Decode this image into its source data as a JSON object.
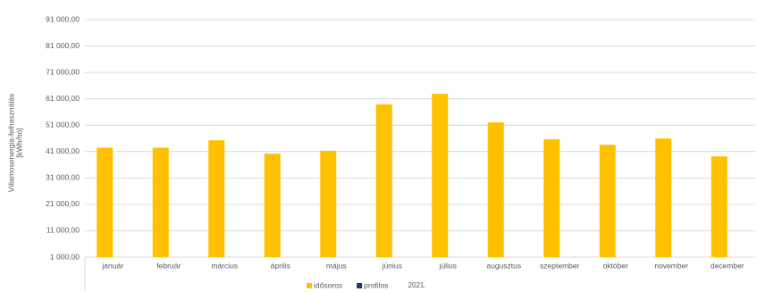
{
  "chart_data": {
    "type": "bar",
    "ylabel": [
      "Villamosenergia-felhasználás",
      "[kWh/hó]"
    ],
    "xlabel": "2021.",
    "categories": [
      "január",
      "február",
      "március",
      "április",
      "május",
      "június",
      "július",
      "augusztus",
      "szeptember",
      "október",
      "november",
      "december"
    ],
    "series": [
      {
        "name": "idősoros",
        "color": "#ffc000",
        "values": [
          42500,
          42500,
          45300,
          40200,
          41300,
          58900,
          62900,
          52100,
          45700,
          43600,
          46000,
          39200
        ]
      },
      {
        "name": "profilos",
        "color": "#203864",
        "values": [
          null,
          null,
          null,
          null,
          null,
          null,
          null,
          null,
          null,
          null,
          null,
          null
        ]
      }
    ],
    "ylim": [
      1000,
      91000
    ],
    "yticks": [
      {
        "value": 1000,
        "label": "1 000,00"
      },
      {
        "value": 11000,
        "label": "11 000,00"
      },
      {
        "value": 21000,
        "label": "21 000,00"
      },
      {
        "value": 31000,
        "label": "31 000,00"
      },
      {
        "value": 41000,
        "label": "41 000,00"
      },
      {
        "value": 51000,
        "label": "51 000,00"
      },
      {
        "value": 61000,
        "label": "61 000,00"
      },
      {
        "value": 71000,
        "label": "71 000,00"
      },
      {
        "value": 81000,
        "label": "81 000,00"
      },
      {
        "value": 91000,
        "label": "91 000,00"
      }
    ],
    "grid": true,
    "legend": "bottom"
  }
}
